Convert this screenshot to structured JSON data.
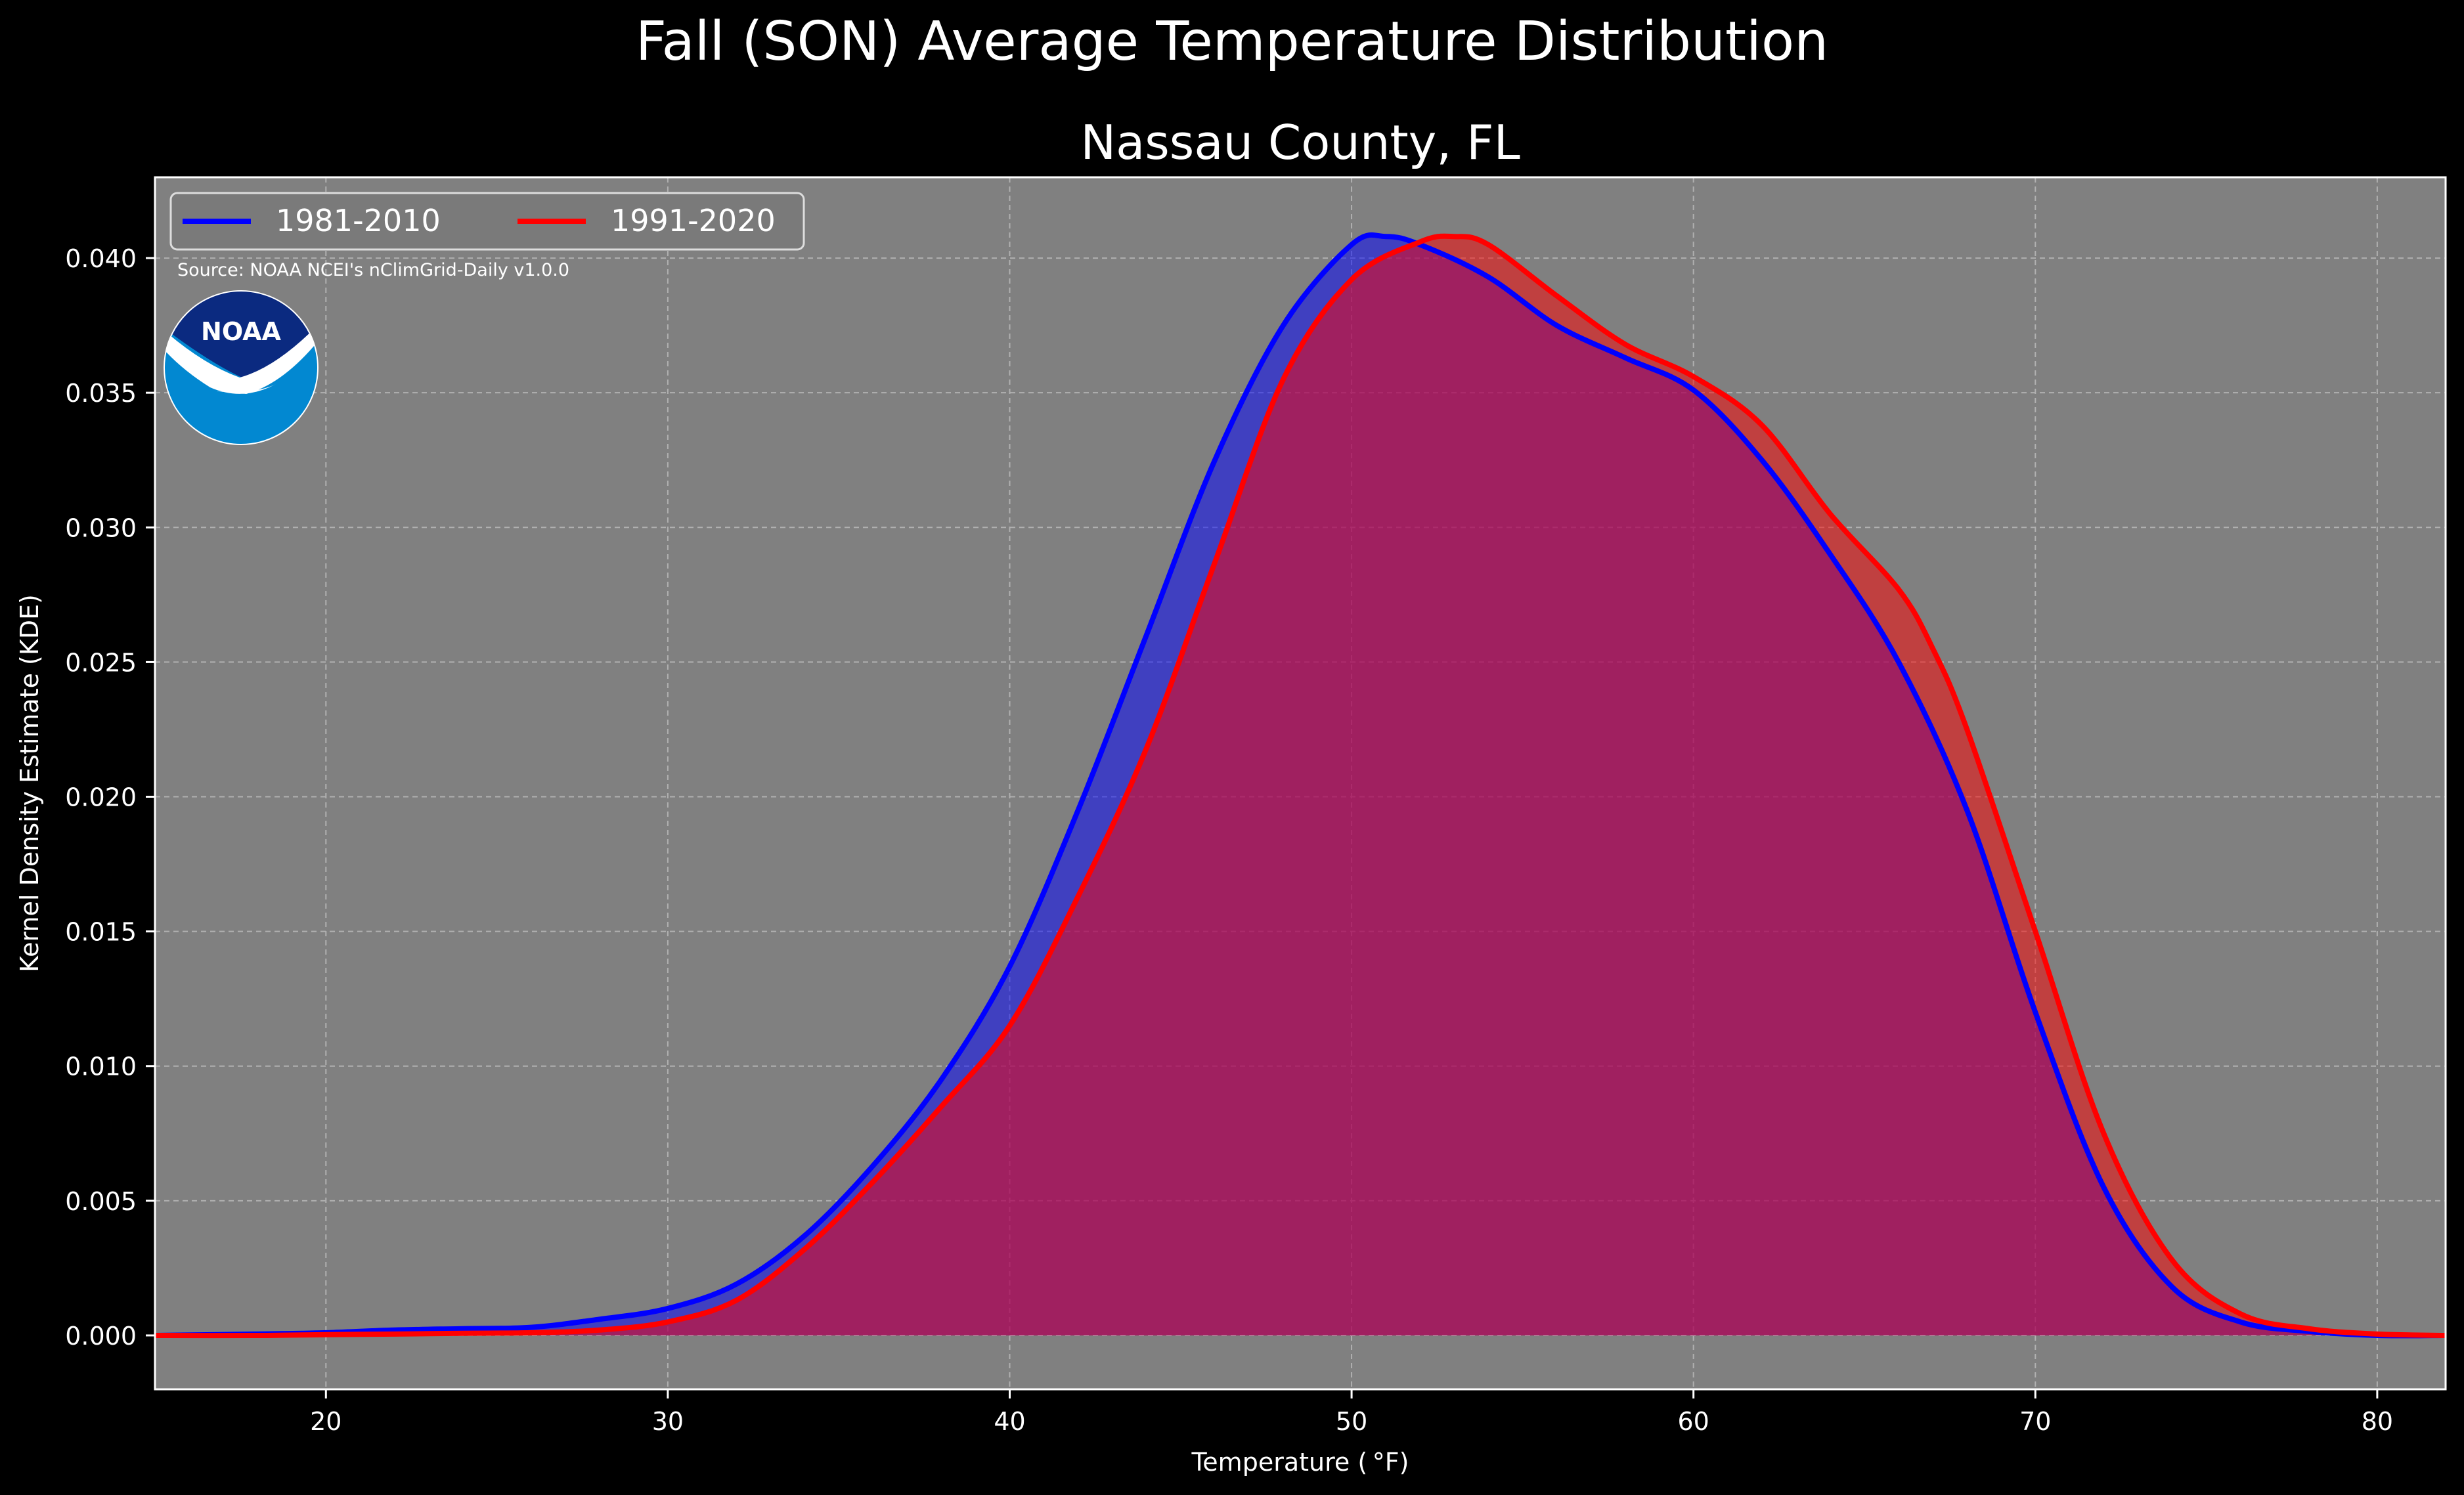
{
  "suptitle": "Fall (SON) Average Temperature Distribution",
  "source_text": "Source: NOAA NCEI's nClimGrid-Daily v1.0.0",
  "logo": {
    "icon": "noaa-logo",
    "text": "NOAA",
    "colors": {
      "top": "#0b2a80",
      "bottom": "#0288d1",
      "wave": "#ffffff"
    }
  },
  "colors": {
    "background": "#000000",
    "axes_face": "#808080",
    "series1": "#0000ff",
    "series2": "#ff0000",
    "series1_fill": "#3a3bc6",
    "series2_fill": "#b63a3a",
    "overlap_fill": "#9c1d5c"
  },
  "chart_data": {
    "type": "area",
    "title": "Nassau County, FL",
    "xlabel": "Temperature ($^\\circ$F)",
    "xlabel_display": "Temperature ( °F)",
    "ylabel": "Kernel Density Estimate (KDE)",
    "xlim": [
      15,
      82
    ],
    "ylim": [
      -0.002,
      0.043
    ],
    "xticks": [
      20,
      30,
      40,
      50,
      60,
      70,
      80
    ],
    "xtick_labels": [
      "20",
      "30",
      "40",
      "50",
      "60",
      "70",
      "80"
    ],
    "yticks": [
      0,
      0.005,
      0.01,
      0.015,
      0.02,
      0.025,
      0.03,
      0.035,
      0.04
    ],
    "ytick_labels": [
      "0.000",
      "0.005",
      "0.010",
      "0.015",
      "0.020",
      "0.025",
      "0.030",
      "0.035",
      "0.040"
    ],
    "grid": true,
    "legend": {
      "placement": "upper-left",
      "columns": 2
    },
    "series": [
      {
        "name": "1981-2010",
        "color": "#0000ff",
        "x": [
          15,
          18,
          20,
          22,
          24,
          26,
          28,
          30,
          32,
          34,
          36,
          38,
          40,
          42,
          44,
          46,
          48,
          50,
          51,
          52,
          54,
          56,
          58,
          60,
          62,
          64,
          66,
          68,
          70,
          72,
          74,
          76,
          78,
          80,
          82
        ],
        "y": [
          0.0,
          5e-05,
          0.0001,
          0.0002,
          0.00025,
          0.0003,
          0.0006,
          0.001,
          0.0019,
          0.0037,
          0.0063,
          0.0095,
          0.0137,
          0.0195,
          0.026,
          0.0325,
          0.0375,
          0.0405,
          0.0408,
          0.0405,
          0.0393,
          0.0375,
          0.0363,
          0.0351,
          0.0325,
          0.029,
          0.025,
          0.0195,
          0.012,
          0.0055,
          0.0018,
          0.0005,
          0.00015,
          0.0,
          0.0
        ]
      },
      {
        "name": "1991-2020",
        "color": "#ff0000",
        "x": [
          15,
          18,
          20,
          22,
          24,
          26,
          28,
          30,
          32,
          34,
          36,
          38,
          40,
          42,
          44,
          46,
          48,
          50,
          52,
          53,
          54,
          56,
          58,
          60,
          62,
          64,
          66,
          67,
          68,
          70,
          72,
          74,
          76,
          78,
          80,
          82
        ],
        "y": [
          0.0,
          0.0,
          3e-05,
          5e-05,
          8e-05,
          0.0001,
          0.0002,
          0.0005,
          0.0013,
          0.0032,
          0.0057,
          0.0085,
          0.0115,
          0.0163,
          0.0218,
          0.0287,
          0.0355,
          0.0392,
          0.0406,
          0.0408,
          0.0405,
          0.0386,
          0.0368,
          0.0356,
          0.0338,
          0.0305,
          0.0277,
          0.0255,
          0.0225,
          0.015,
          0.0075,
          0.0028,
          0.0008,
          0.00025,
          5e-05,
          0.0
        ]
      }
    ]
  }
}
